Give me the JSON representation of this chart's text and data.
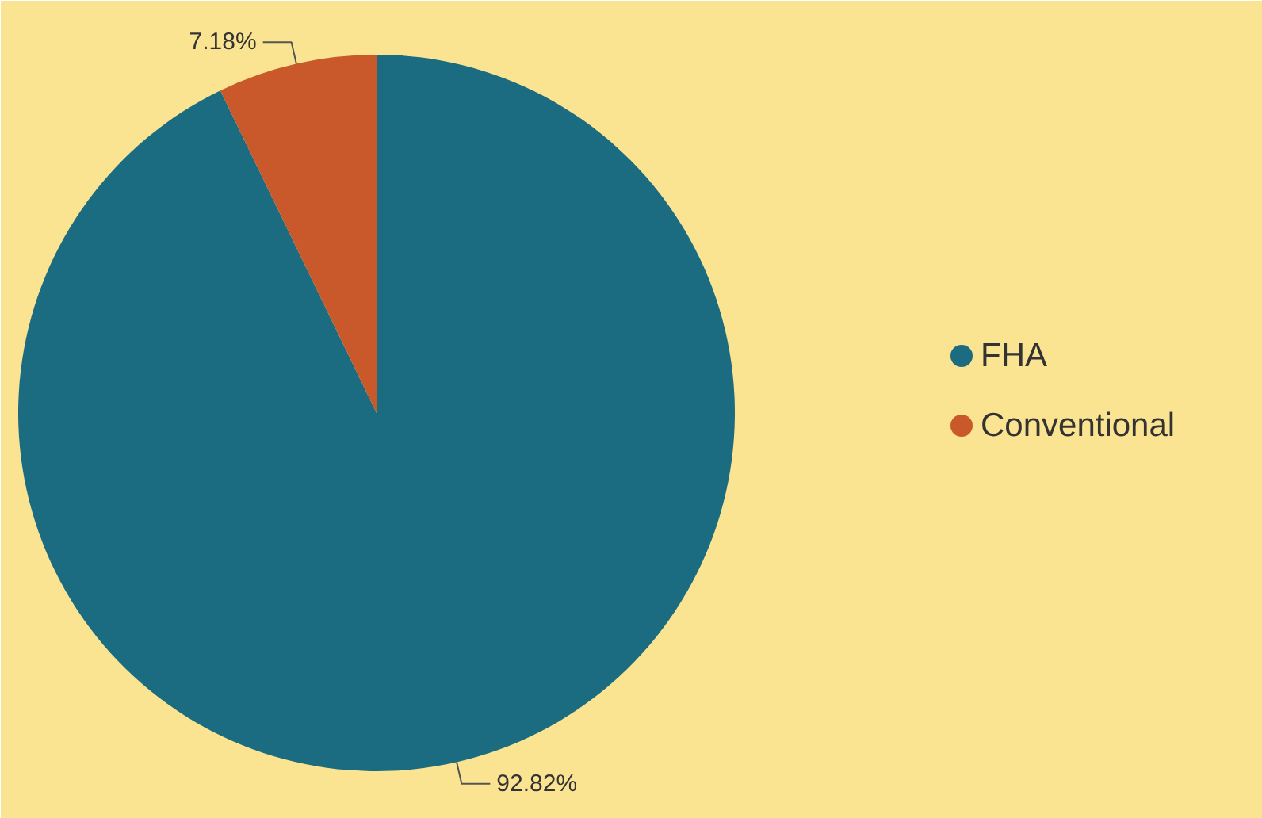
{
  "chart_data": {
    "type": "pie",
    "categories": [
      "FHA",
      "Conventional"
    ],
    "values": [
      92.82,
      7.18
    ],
    "colors": [
      "#1b6c80",
      "#c9582b"
    ],
    "value_labels": [
      "92.82%",
      "7.18%"
    ],
    "legend": "right"
  }
}
